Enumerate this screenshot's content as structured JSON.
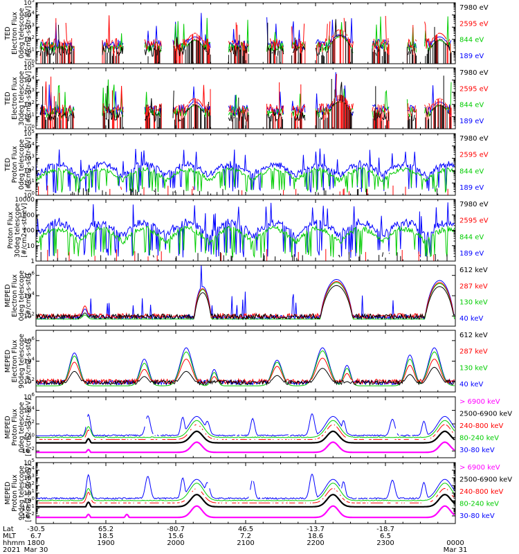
{
  "chart_data": [
    {
      "type": "line",
      "ylabel": [
        "TED",
        "Electron Flux",
        "0deg telescope",
        "[#/cm2-s-str-eV]"
      ],
      "yscale": "log",
      "ylim_exp": [
        0,
        5
      ],
      "ytick_labels": [
        "10^0",
        "10^1",
        "10^2",
        "10^3",
        "10^4",
        "10^5"
      ],
      "series": [
        {
          "name": "7980 eV",
          "color": "#000000"
        },
        {
          "name": "2595 eV",
          "color": "#ff0000"
        },
        {
          "name": "844 eV",
          "color": "#00cc00"
        },
        {
          "name": "189 eV",
          "color": "#0000ff"
        }
      ],
      "pattern": "ted_e",
      "seed": 11
    },
    {
      "type": "line",
      "ylabel": [
        "TED",
        "Electron Flux",
        "30deg telescope",
        "[#/cm2-s-str-eV]"
      ],
      "yscale": "log",
      "ylim_exp": [
        0,
        5
      ],
      "ytick_labels": [
        "10^0",
        "10^1",
        "10^2",
        "10^3",
        "10^4",
        "10^5"
      ],
      "series": [
        {
          "name": "7980 eV",
          "color": "#000000"
        },
        {
          "name": "2595 eV",
          "color": "#ff0000"
        },
        {
          "name": "844 eV",
          "color": "#00cc00"
        },
        {
          "name": "189 eV",
          "color": "#0000ff"
        }
      ],
      "pattern": "ted_e",
      "seed": 23
    },
    {
      "type": "line",
      "ylabel": [
        "TED",
        "Proton Flux",
        "0deg telescope",
        "[#/cm2-s-str-eV]"
      ],
      "yscale": "log",
      "ylim_exp": [
        0,
        5
      ],
      "ytick_labels": [
        "10^0",
        "10^1",
        "10^2",
        "10^3",
        "10^4",
        "10^5"
      ],
      "series": [
        {
          "name": "7980 eV",
          "color": "#000000"
        },
        {
          "name": "2595 eV",
          "color": "#ff0000"
        },
        {
          "name": "844 eV",
          "color": "#00cc00"
        },
        {
          "name": "189 eV",
          "color": "#0000ff"
        }
      ],
      "pattern": "ted_p",
      "seed": 37
    },
    {
      "type": "line",
      "ylabel": [
        "Proton Flux",
        "30deg telescope",
        "[#/cm2-s-str-eV]"
      ],
      "yscale": "log",
      "ylim_exp": [
        0,
        4
      ],
      "ytick_labels": [
        "1",
        "10",
        "100",
        "1000",
        "10000"
      ],
      "series": [
        {
          "name": "7980 eV",
          "color": "#000000"
        },
        {
          "name": "2595 eV",
          "color": "#ff0000"
        },
        {
          "name": "844 eV",
          "color": "#00cc00"
        },
        {
          "name": "189 eV",
          "color": "#0000ff"
        }
      ],
      "pattern": "ted_p",
      "seed": 41
    },
    {
      "type": "line",
      "ylabel": [
        "MEPED",
        "Electron Flux",
        "0deg telescope",
        "[#/cm2-s-str]"
      ],
      "yscale": "log",
      "ylim_exp": [
        1,
        7
      ],
      "ytick_labels": [
        "10^2",
        "10^4",
        "10^6"
      ],
      "ytick_exps": [
        2,
        4,
        6
      ],
      "series": [
        {
          "name": "612 keV",
          "color": "#000000"
        },
        {
          "name": "287 keV",
          "color": "#ff0000"
        },
        {
          "name": "130 keV",
          "color": "#00cc00"
        },
        {
          "name": "40 keV",
          "color": "#0000ff"
        }
      ],
      "pattern": "mep_e0",
      "seed": 53
    },
    {
      "type": "line",
      "ylabel": [
        "MEPED",
        "Electron Flux",
        "90deg telescope",
        "[#/cm2-s-str]"
      ],
      "yscale": "log",
      "ylim_exp": [
        1,
        7
      ],
      "ytick_labels": [
        "10^2",
        "10^4",
        "10^6"
      ],
      "ytick_exps": [
        2,
        4,
        6
      ],
      "series": [
        {
          "name": "612 keV",
          "color": "#000000"
        },
        {
          "name": "287 keV",
          "color": "#ff0000"
        },
        {
          "name": "130 keV",
          "color": "#00cc00"
        },
        {
          "name": "40 keV",
          "color": "#0000ff"
        }
      ],
      "pattern": "mep_e90",
      "seed": 67
    },
    {
      "type": "line",
      "ylabel": [
        "MEPED",
        "Proton Flux",
        "0deg telescope",
        "[#/cm2-s-str-keV]"
      ],
      "yscale": "log",
      "ylim_exp": [
        -3,
        6
      ],
      "ytick_labels": [
        "10^-2",
        "10^0",
        "10^2",
        "10^4",
        "10^6"
      ],
      "ytick_exps": [
        -2,
        0,
        2,
        4,
        6
      ],
      "series": [
        {
          "name": "> 6900 keV",
          "color": "#ff00ff"
        },
        {
          "name": "2500-6900 keV",
          "color": "#000000"
        },
        {
          "name": "240-800 keV",
          "color": "#ff0000"
        },
        {
          "name": "80-240 keV",
          "color": "#00cc00"
        },
        {
          "name": "30-80 keV",
          "color": "#0000ff"
        }
      ],
      "pattern": "mep_p0",
      "seed": 79
    },
    {
      "type": "line",
      "ylabel": [
        "MEPED",
        "Proton Flux",
        "90deg telescope",
        "[#/cm2-s-str-keV]"
      ],
      "yscale": "log",
      "ylim_exp": [
        -3,
        5
      ],
      "ytick_labels": [
        "10^-2",
        "10^-1",
        "10^0",
        "10^1",
        "10^2",
        "10^3",
        "10^4",
        "10^5"
      ],
      "ytick_exps": [
        -2,
        -1,
        0,
        1,
        2,
        3,
        4,
        5
      ],
      "series": [
        {
          "name": "> 6900 keV",
          "color": "#ff00ff"
        },
        {
          "name": "2500-6900 keV",
          "color": "#000000"
        },
        {
          "name": "240-800 keV",
          "color": "#ff0000"
        },
        {
          "name": "80-240 keV",
          "color": "#00cc00"
        },
        {
          "name": "30-80 keV",
          "color": "#0000ff"
        }
      ],
      "pattern": "mep_p90",
      "seed": 97
    }
  ],
  "x_axis": {
    "row_labels": [
      "Lat",
      "MLT",
      "hhmm",
      "2021"
    ],
    "columns": [
      {
        "lat": "-30.5",
        "mlt": "6.7",
        "hhmm": "1800",
        "date": "Mar 30"
      },
      {
        "lat": "65.2",
        "mlt": "18.5",
        "hhmm": "1900",
        "date": ""
      },
      {
        "lat": "-80.7",
        "mlt": "15.6",
        "hhmm": "2000",
        "date": ""
      },
      {
        "lat": "46.5",
        "mlt": "7.2",
        "hhmm": "2100",
        "date": ""
      },
      {
        "lat": "-13.7",
        "mlt": "18.6",
        "hhmm": "2200",
        "date": ""
      },
      {
        "lat": "-18.7",
        "mlt": "6.5",
        "hhmm": "2300",
        "date": ""
      },
      {
        "lat": "",
        "mlt": "",
        "hhmm": "0000",
        "date": "Mar 31"
      }
    ],
    "x_hours": [
      18,
      19,
      20,
      21,
      22,
      23,
      24
    ]
  }
}
